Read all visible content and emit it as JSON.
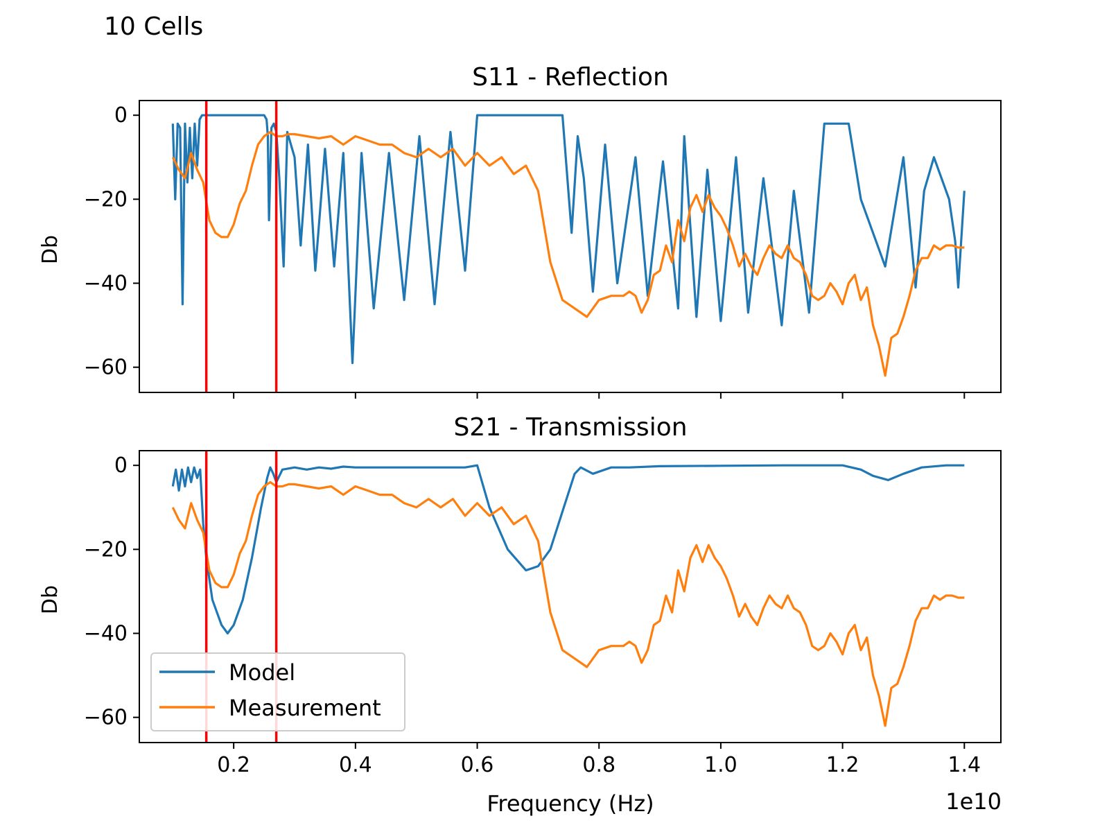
{
  "figure": {
    "suptitle": "10 Cells",
    "offset_text": "1e10",
    "xlabel": "Frequency (Hz)"
  },
  "colors": {
    "model": "#1f77b4",
    "measurement": "#ff7f0e",
    "markers": "#ff0000"
  },
  "legend": {
    "placement": "lower-left of bottom subplot",
    "entries": [
      "Model",
      "Measurement"
    ]
  },
  "chart_data": [
    {
      "type": "line",
      "title": "S11 - Reflection",
      "xlabel": "",
      "ylabel": "Db",
      "x_unit_scale": "1e10",
      "xlim": [
        0.045,
        1.46
      ],
      "ylim": [
        -66,
        3.5
      ],
      "xticks": [
        0.2,
        0.4,
        0.6,
        0.8,
        1.0,
        1.2,
        1.4
      ],
      "xtick_labels_visible": false,
      "yticks": [
        0,
        -20,
        -40,
        -60
      ],
      "ytick_labels": [
        "0",
        "−20",
        "−40",
        "−60"
      ],
      "vlines": [
        0.155,
        0.27
      ],
      "series": [
        {
          "name": "Model",
          "x": [
            0.1,
            0.104,
            0.108,
            0.112,
            0.116,
            0.12,
            0.124,
            0.128,
            0.132,
            0.136,
            0.14,
            0.144,
            0.148,
            0.152,
            0.156,
            0.16,
            0.2,
            0.25,
            0.254,
            0.256,
            0.258,
            0.262,
            0.266,
            0.27,
            0.275,
            0.282,
            0.288,
            0.3,
            0.31,
            0.322,
            0.334,
            0.35,
            0.365,
            0.38,
            0.395,
            0.41,
            0.43,
            0.455,
            0.48,
            0.505,
            0.53,
            0.556,
            0.58,
            0.6,
            0.61,
            0.63,
            0.65,
            0.7,
            0.74,
            0.755,
            0.765,
            0.775,
            0.79,
            0.81,
            0.83,
            0.86,
            0.88,
            0.905,
            0.93,
            0.94,
            0.96,
            0.978,
            1.0,
            1.025,
            1.045,
            1.07,
            1.1,
            1.12,
            1.145,
            1.17,
            1.21,
            1.23,
            1.27,
            1.3,
            1.32,
            1.334,
            1.35,
            1.375,
            1.385,
            1.39,
            1.4
          ],
          "y": [
            -2,
            -20,
            -2,
            -3,
            -45,
            -2,
            -16,
            -3,
            -15,
            -2,
            -12,
            -1,
            0,
            0,
            0,
            0,
            0,
            0,
            -1,
            -5,
            -25,
            -3,
            -2,
            -4,
            -15,
            -36,
            -4,
            -10,
            -31,
            -7,
            -37,
            -8,
            -36,
            -9,
            -59,
            -9,
            -46,
            -9,
            -44,
            -5,
            -45,
            -4,
            -37,
            0,
            0,
            0,
            0,
            0,
            0,
            -28,
            -5,
            -15,
            -42,
            -7,
            -40,
            -10,
            -43,
            -11,
            -46,
            -5,
            -48,
            -13,
            -49,
            -10,
            -47,
            -15,
            -50,
            -18,
            -47,
            -2,
            -2,
            -20,
            -36,
            -10,
            -41,
            -18,
            -10,
            -20,
            -30,
            -41,
            -18
          ]
        },
        {
          "name": "Measurement",
          "x": [
            0.1,
            0.11,
            0.12,
            0.13,
            0.14,
            0.15,
            0.16,
            0.17,
            0.18,
            0.19,
            0.2,
            0.21,
            0.22,
            0.23,
            0.24,
            0.25,
            0.26,
            0.27,
            0.28,
            0.29,
            0.3,
            0.32,
            0.34,
            0.36,
            0.38,
            0.4,
            0.42,
            0.44,
            0.46,
            0.48,
            0.5,
            0.52,
            0.54,
            0.56,
            0.58,
            0.6,
            0.62,
            0.64,
            0.66,
            0.68,
            0.7,
            0.72,
            0.74,
            0.76,
            0.78,
            0.8,
            0.82,
            0.84,
            0.85,
            0.86,
            0.87,
            0.88,
            0.89,
            0.9,
            0.91,
            0.92,
            0.93,
            0.94,
            0.95,
            0.96,
            0.97,
            0.98,
            0.99,
            1.0,
            1.01,
            1.02,
            1.03,
            1.04,
            1.05,
            1.06,
            1.07,
            1.08,
            1.09,
            1.1,
            1.11,
            1.12,
            1.13,
            1.14,
            1.15,
            1.16,
            1.17,
            1.18,
            1.19,
            1.2,
            1.21,
            1.22,
            1.23,
            1.24,
            1.25,
            1.26,
            1.27,
            1.28,
            1.29,
            1.3,
            1.31,
            1.32,
            1.33,
            1.34,
            1.35,
            1.36,
            1.37,
            1.38,
            1.39,
            1.4
          ],
          "y": [
            -10,
            -13,
            -15,
            -9,
            -13,
            -16,
            -25,
            -28,
            -29,
            -29,
            -26,
            -21,
            -18,
            -12,
            -7,
            -5,
            -4,
            -5,
            -5,
            -4.5,
            -4.5,
            -5,
            -5.5,
            -5,
            -7,
            -5,
            -6,
            -7,
            -7,
            -9,
            -10,
            -8,
            -10,
            -8,
            -12,
            -9,
            -12,
            -10,
            -14,
            -12,
            -18,
            -35,
            -44,
            -46,
            -48,
            -44,
            -43,
            -43,
            -42,
            -43,
            -47,
            -44,
            -38,
            -37,
            -31,
            -35,
            -25,
            -30,
            -22,
            -19,
            -23,
            -19,
            -22,
            -24,
            -27,
            -31,
            -36,
            -33,
            -36,
            -38,
            -34,
            -31,
            -33,
            -34,
            -31,
            -34,
            -35,
            -38,
            -43,
            -44,
            -43,
            -40,
            -42,
            -45,
            -40,
            -38,
            -44,
            -41,
            -50,
            -55,
            -62,
            -53,
            -52,
            -48,
            -43,
            -37,
            -34,
            -34,
            -31,
            -32,
            -31,
            -31,
            -31.5,
            -31.5
          ]
        }
      ]
    },
    {
      "type": "line",
      "title": "S21 - Transmission",
      "xlabel": "Frequency (Hz)",
      "ylabel": "Db",
      "x_unit_scale": "1e10",
      "xlim": [
        0.045,
        1.46
      ],
      "ylim": [
        -66,
        3.5
      ],
      "xticks": [
        0.2,
        0.4,
        0.6,
        0.8,
        1.0,
        1.2,
        1.4
      ],
      "xtick_labels": [
        "0.2",
        "0.4",
        "0.6",
        "0.8",
        "1.0",
        "1.2",
        "1.4"
      ],
      "yticks": [
        0,
        -20,
        -40,
        -60
      ],
      "ytick_labels": [
        "0",
        "−20",
        "−40",
        "−60"
      ],
      "vlines": [
        0.155,
        0.27
      ],
      "series": [
        {
          "name": "Model",
          "x": [
            0.1,
            0.105,
            0.11,
            0.115,
            0.12,
            0.125,
            0.13,
            0.135,
            0.14,
            0.145,
            0.15,
            0.155,
            0.165,
            0.18,
            0.19,
            0.2,
            0.215,
            0.23,
            0.245,
            0.255,
            0.26,
            0.265,
            0.27,
            0.28,
            0.3,
            0.32,
            0.34,
            0.36,
            0.38,
            0.4,
            0.43,
            0.46,
            0.49,
            0.52,
            0.55,
            0.58,
            0.6,
            0.62,
            0.65,
            0.68,
            0.7,
            0.72,
            0.74,
            0.76,
            0.77,
            0.79,
            0.82,
            0.85,
            0.9,
            1.0,
            1.1,
            1.2,
            1.23,
            1.25,
            1.275,
            1.3,
            1.33,
            1.37,
            1.4
          ],
          "y": [
            -5,
            -1,
            -6,
            -1,
            -5,
            -0.5,
            -4,
            -0.5,
            -3,
            -1,
            -14,
            -22,
            -32,
            -38,
            -40,
            -38,
            -32,
            -22,
            -10,
            -3,
            -0.5,
            -2,
            -4,
            -1,
            -0.5,
            -1,
            -0.5,
            -0.8,
            -0.3,
            -0.5,
            -0.5,
            -0.5,
            -0.5,
            -0.5,
            -0.5,
            -0.5,
            0,
            -10,
            -20,
            -25,
            -24,
            -20,
            -11,
            -2,
            -0.5,
            -2,
            -0.5,
            -0.5,
            -0.2,
            -0.1,
            0,
            0,
            -1,
            -2.5,
            -3.5,
            -2,
            -0.5,
            0,
            0
          ]
        },
        {
          "name": "Measurement",
          "x": [
            0.1,
            0.11,
            0.12,
            0.13,
            0.14,
            0.15,
            0.16,
            0.17,
            0.18,
            0.19,
            0.2,
            0.21,
            0.22,
            0.23,
            0.24,
            0.25,
            0.26,
            0.27,
            0.28,
            0.29,
            0.3,
            0.32,
            0.34,
            0.36,
            0.38,
            0.4,
            0.42,
            0.44,
            0.46,
            0.48,
            0.5,
            0.52,
            0.54,
            0.56,
            0.58,
            0.6,
            0.62,
            0.64,
            0.66,
            0.68,
            0.7,
            0.72,
            0.74,
            0.76,
            0.78,
            0.8,
            0.82,
            0.84,
            0.85,
            0.86,
            0.87,
            0.88,
            0.89,
            0.9,
            0.91,
            0.92,
            0.93,
            0.94,
            0.95,
            0.96,
            0.97,
            0.98,
            0.99,
            1.0,
            1.01,
            1.02,
            1.03,
            1.04,
            1.05,
            1.06,
            1.07,
            1.08,
            1.09,
            1.1,
            1.11,
            1.12,
            1.13,
            1.14,
            1.15,
            1.16,
            1.17,
            1.18,
            1.19,
            1.2,
            1.21,
            1.22,
            1.23,
            1.24,
            1.25,
            1.26,
            1.27,
            1.28,
            1.29,
            1.3,
            1.31,
            1.32,
            1.33,
            1.34,
            1.35,
            1.36,
            1.37,
            1.38,
            1.39,
            1.4
          ],
          "y": [
            -10,
            -13,
            -15,
            -9,
            -13,
            -16,
            -25,
            -28,
            -29,
            -29,
            -26,
            -21,
            -18,
            -12,
            -7,
            -5,
            -4,
            -5,
            -5,
            -4.5,
            -4.5,
            -5,
            -5.5,
            -5,
            -7,
            -5,
            -6,
            -7,
            -7,
            -9,
            -10,
            -8,
            -10,
            -8,
            -12,
            -9,
            -12,
            -10,
            -14,
            -12,
            -18,
            -35,
            -44,
            -46,
            -48,
            -44,
            -43,
            -43,
            -42,
            -43,
            -47,
            -44,
            -38,
            -37,
            -31,
            -35,
            -25,
            -30,
            -22,
            -19,
            -23,
            -19,
            -22,
            -24,
            -27,
            -31,
            -36,
            -33,
            -36,
            -38,
            -34,
            -31,
            -33,
            -34,
            -31,
            -34,
            -35,
            -38,
            -43,
            -44,
            -43,
            -40,
            -42,
            -45,
            -40,
            -38,
            -44,
            -41,
            -50,
            -55,
            -62,
            -53,
            -52,
            -48,
            -43,
            -37,
            -34,
            -34,
            -31,
            -32,
            -31,
            -31,
            -31.5,
            -31.5
          ]
        }
      ]
    }
  ]
}
